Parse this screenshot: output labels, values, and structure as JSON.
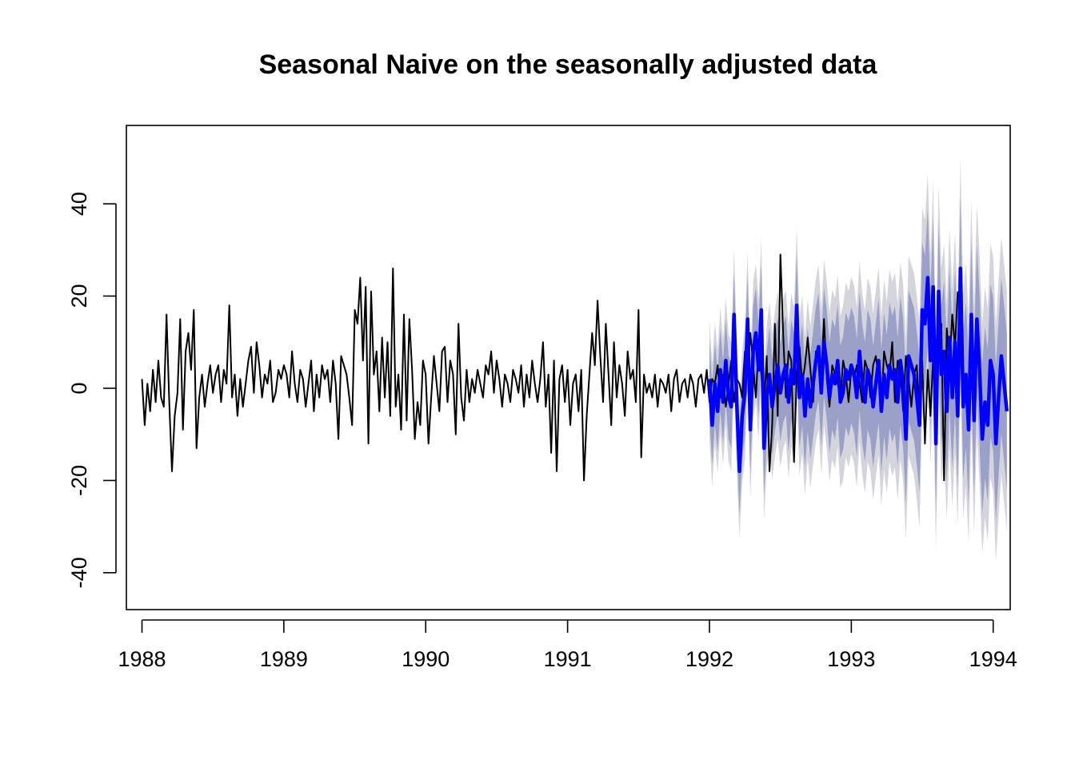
{
  "chart_data": {
    "type": "line",
    "title": "Seasonal Naive on the seasonally adjusted data",
    "xlabel": "",
    "ylabel": "",
    "xlim": [
      1987.89,
      1994.12
    ],
    "ylim": [
      -48,
      57
    ],
    "x_ticks": [
      1988,
      1989,
      1990,
      1991,
      1992,
      1993,
      1994
    ],
    "x_tick_labels": [
      "1988",
      "1989",
      "1990",
      "1991",
      "1992",
      "1993",
      "1994"
    ],
    "y_ticks": [
      -40,
      -20,
      0,
      20,
      40
    ],
    "y_tick_labels": [
      "-40",
      "-20",
      "0",
      "20",
      "40"
    ],
    "frequency": 52,
    "start": 1988.0,
    "colors": {
      "history": "#000000",
      "forecast": "#0000ff",
      "band80": "#9aa0c8",
      "band95": "#d4d4dc"
    },
    "series": [
      {
        "role": "history",
        "start": 1988.0,
        "values": [
          2,
          -8,
          1,
          -5,
          4,
          -3,
          6,
          -2,
          -4,
          16,
          -3,
          -18,
          -6,
          -1,
          15,
          -9,
          8,
          12,
          4,
          17,
          -13,
          -2,
          3,
          -4,
          1,
          5,
          -1,
          3,
          5,
          -3,
          4,
          1,
          18,
          -2,
          3,
          -6,
          2,
          -4,
          1,
          6,
          9,
          -1,
          10,
          5,
          -2,
          3,
          1,
          6,
          -3,
          -1,
          4,
          2,
          5,
          3,
          -2,
          8,
          1,
          -3,
          4,
          2,
          -4,
          1,
          6,
          -5,
          3,
          -2,
          5,
          2,
          4,
          -3,
          6,
          1,
          -11,
          7,
          5,
          3,
          -2,
          -8,
          17,
          14,
          24,
          6,
          22,
          -12,
          21,
          3,
          8,
          -5,
          11,
          -2,
          10,
          -6,
          26,
          -4,
          3,
          -9,
          16,
          -7,
          15,
          4,
          -11,
          -3,
          -8,
          6,
          3,
          -12,
          -2,
          7,
          1,
          -5,
          8,
          9,
          -3,
          6,
          3,
          -10,
          14,
          -2,
          -7,
          4,
          -3,
          2,
          -1,
          4,
          1,
          -2,
          5,
          3,
          8,
          -1,
          6,
          2,
          -4,
          3,
          1,
          -3,
          4,
          2,
          -1,
          5,
          -4,
          3,
          -2,
          6,
          1,
          -3,
          2,
          10,
          -4,
          3,
          -14,
          6,
          -18,
          2,
          5,
          -3,
          4,
          -8,
          1,
          3,
          -5,
          4,
          -20,
          -6,
          3,
          12,
          5,
          19,
          7,
          -3,
          14,
          3,
          -8,
          10,
          -2,
          5,
          1,
          -6,
          8,
          2,
          4,
          -3,
          17,
          -15,
          3,
          -1,
          1,
          -2,
          3,
          -4,
          2,
          1,
          -1,
          3,
          -5,
          2,
          4,
          -3,
          1,
          2,
          -2,
          3,
          1,
          -4,
          2,
          3,
          -1,
          4,
          -3,
          2,
          1,
          5,
          -2,
          3,
          -4,
          1,
          6,
          -3,
          2,
          1,
          -2,
          8,
          3,
          12,
          5,
          -2,
          9,
          3,
          -4,
          7,
          -18,
          -8,
          14,
          -6,
          29,
          12,
          -2,
          8,
          6,
          -16,
          3,
          9,
          1,
          5,
          11,
          4,
          -3,
          8,
          6,
          3,
          15,
          2,
          -4,
          5,
          3,
          1,
          -2,
          6,
          3,
          -3,
          4,
          2,
          5,
          1,
          -3,
          6,
          4,
          -2,
          5,
          7,
          2,
          -4,
          8,
          5,
          3,
          10,
          -3,
          6,
          4,
          -5,
          7,
          2,
          -4,
          3,
          5,
          -8,
          6,
          -12,
          4,
          -6,
          7,
          3,
          10,
          14,
          -20,
          13,
          5,
          16,
          9,
          21
        ]
      },
      {
        "role": "forecast",
        "start": 1992.0,
        "values": [
          2,
          -8,
          1,
          -5,
          4,
          -3,
          6,
          -2,
          -4,
          16,
          -3,
          -18,
          -6,
          -1,
          15,
          -9,
          8,
          12,
          4,
          17,
          -13,
          -2,
          3,
          -4,
          1,
          5,
          -1,
          3,
          5,
          -3,
          4,
          1,
          18,
          -2,
          3,
          -6,
          2,
          -4,
          1,
          6,
          9,
          -1,
          10,
          5,
          -2,
          3,
          1,
          6,
          -3,
          -1,
          4,
          2,
          5,
          3,
          -2,
          8,
          1,
          -3,
          4,
          2,
          -4,
          1,
          6,
          -5,
          3,
          -2,
          5,
          2,
          4,
          -3,
          6,
          1,
          -11,
          7,
          5,
          3,
          -2,
          -8,
          17,
          14,
          24,
          6,
          22,
          -12,
          21,
          3,
          8,
          -5,
          11,
          -2,
          10,
          -6,
          26,
          -4,
          3,
          -9,
          16,
          -7,
          15,
          4,
          -11,
          -3,
          -8,
          6,
          3,
          -12,
          -2,
          7,
          1,
          -5
        ]
      }
    ],
    "forecast_intervals": {
      "levels": [
        80,
        95
      ],
      "half_width_80_start": 8.5,
      "half_width_80_end": 17,
      "half_width_95_start": 13,
      "half_width_95_end": 26
    }
  }
}
